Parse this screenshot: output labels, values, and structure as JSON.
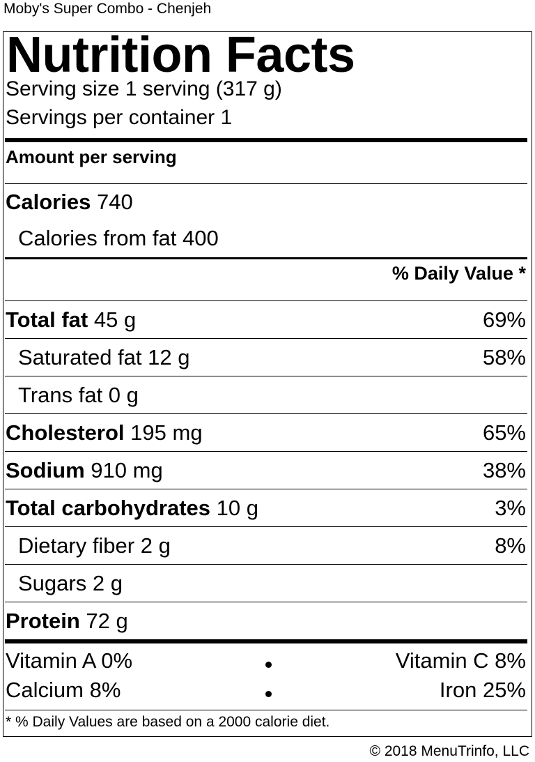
{
  "page_title": "Moby's Super Combo - Chenjeh",
  "label": {
    "heading": "Nutrition Facts",
    "serving_size": "Serving size 1 serving (317 g)",
    "servings_per_container": "Servings per container 1",
    "amount_per_serving": "Amount per serving",
    "calories_label": "Calories",
    "calories_value": "740",
    "calories_from_fat": "Calories from fat 400",
    "daily_value_header": "% Daily Value *",
    "nutrients": [
      {
        "name": "Total fat",
        "amount": "45 g",
        "dv": "69%"
      },
      {
        "name": "Saturated fat",
        "amount": "12 g",
        "dv": "58%"
      },
      {
        "name": "Trans fat",
        "amount": "0 g",
        "dv": ""
      },
      {
        "name": "Cholesterol",
        "amount": "195 mg",
        "dv": "65%"
      },
      {
        "name": "Sodium",
        "amount": "910 mg",
        "dv": "38%"
      },
      {
        "name": "Total carbohydrates",
        "amount": "10 g",
        "dv": "3%"
      },
      {
        "name": "Dietary fiber",
        "amount": "2 g",
        "dv": "8%"
      },
      {
        "name": "Sugars",
        "amount": "2 g",
        "dv": ""
      },
      {
        "name": "Protein",
        "amount": "72 g",
        "dv": ""
      }
    ],
    "vitamins": {
      "vitamin_a": "Vitamin A 0%",
      "vitamin_c": "Vitamin C 8%",
      "calcium": "Calcium 8%",
      "iron": "Iron 25%"
    },
    "footnote": "* % Daily Values are based on a 2000 calorie diet."
  },
  "copyright": "© 2018 MenuTrinfo, LLC"
}
